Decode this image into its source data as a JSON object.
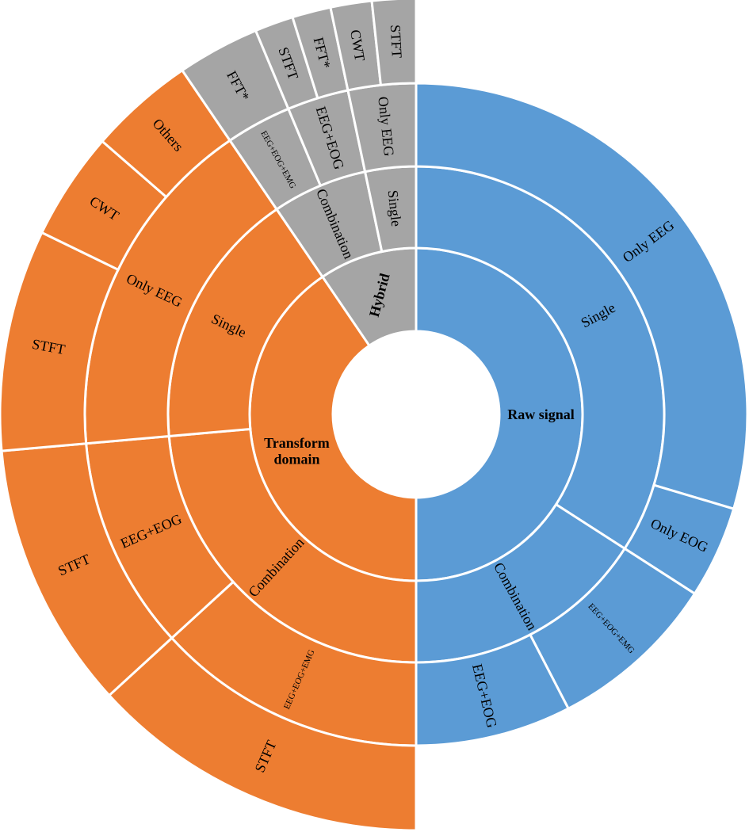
{
  "chart_data": {
    "type": "sunburst",
    "colors": {
      "Raw signal": "#5b9bd5",
      "Transform domain": "#ed7d31",
      "Hybrid": "#a5a5a5"
    },
    "segments": [
      {
        "id": "raw",
        "label": "Raw signal",
        "ring": 0,
        "start": 0.0,
        "end": 0.5,
        "group": "Raw signal",
        "bold": true
      },
      {
        "id": "transform",
        "label": "Transform domain",
        "ring": 0,
        "start": 0.5,
        "end": 0.905,
        "group": "Transform domain",
        "bold": true,
        "lines": [
          "Transform",
          "domain"
        ]
      },
      {
        "id": "hybrid",
        "label": "Hybrid",
        "ring": 0,
        "start": 0.905,
        "end": 1.0,
        "group": "Hybrid",
        "bold": true
      },
      {
        "id": "raw-single",
        "label": "Single",
        "ring": 1,
        "start": 0.0,
        "end": 0.341,
        "group": "Raw signal"
      },
      {
        "id": "raw-combination",
        "label": "Combination",
        "ring": 1,
        "start": 0.341,
        "end": 0.5,
        "group": "Raw signal"
      },
      {
        "id": "transform-combination",
        "label": "Combination",
        "ring": 1,
        "start": 0.5,
        "end": 0.736,
        "group": "Transform domain"
      },
      {
        "id": "transform-single",
        "label": "Single",
        "ring": 1,
        "start": 0.736,
        "end": 0.905,
        "group": "Transform domain"
      },
      {
        "id": "hybrid-combination",
        "label": "Combination",
        "ring": 1,
        "start": 0.905,
        "end": 0.967,
        "group": "Hybrid"
      },
      {
        "id": "hybrid-single",
        "label": "Single",
        "ring": 1,
        "start": 0.967,
        "end": 1.0,
        "group": "Hybrid"
      },
      {
        "id": "raw-only-eeg",
        "label": "Only EEG",
        "ring": 2,
        "start": 0.0,
        "end": 0.296,
        "group": "Raw signal"
      },
      {
        "id": "raw-only-eog",
        "label": "Only EOG",
        "ring": 2,
        "start": 0.296,
        "end": 0.341,
        "group": "Raw signal"
      },
      {
        "id": "raw-eeg-eog-emg",
        "label": "EEG+EOG+EMG",
        "ring": 2,
        "start": 0.341,
        "end": 0.424,
        "group": "Raw signal",
        "small": true
      },
      {
        "id": "raw-eeg-eog",
        "label": "EEG+EOG",
        "ring": 2,
        "start": 0.424,
        "end": 0.5,
        "group": "Raw signal"
      },
      {
        "id": "transform-eeg-eog-emg",
        "label": "EEG+EOG+EMG",
        "ring": 2,
        "start": 0.5,
        "end": 0.632,
        "group": "Transform domain",
        "small": true
      },
      {
        "id": "transform-eeg-eog",
        "label": "EEG+EOG",
        "ring": 2,
        "start": 0.632,
        "end": 0.736,
        "group": "Transform domain"
      },
      {
        "id": "transform-only-eeg",
        "label": "Only EEG",
        "ring": 2,
        "start": 0.736,
        "end": 0.905,
        "group": "Transform domain"
      },
      {
        "id": "hybrid-eeg-eog-emg",
        "label": "EEG+EOG+EMG",
        "ring": 2,
        "start": 0.905,
        "end": 0.937,
        "group": "Hybrid",
        "small": true
      },
      {
        "id": "hybrid-eeg-eog",
        "label": "EEG+EOG",
        "ring": 2,
        "start": 0.937,
        "end": 0.967,
        "group": "Hybrid"
      },
      {
        "id": "hybrid-only-eeg",
        "label": "Only EEG",
        "ring": 2,
        "start": 0.967,
        "end": 1.0,
        "group": "Hybrid"
      },
      {
        "id": "transform-stft-1",
        "label": "STFT",
        "ring": 3,
        "start": 0.5,
        "end": 0.632,
        "group": "Transform domain"
      },
      {
        "id": "transform-stft-2",
        "label": "STFT",
        "ring": 3,
        "start": 0.632,
        "end": 0.736,
        "group": "Transform domain"
      },
      {
        "id": "transform-stft-3",
        "label": "STFT",
        "ring": 3,
        "start": 0.736,
        "end": 0.822,
        "group": "Transform domain"
      },
      {
        "id": "transform-cwt",
        "label": "CWT",
        "ring": 3,
        "start": 0.822,
        "end": 0.864,
        "group": "Transform domain"
      },
      {
        "id": "transform-others",
        "label": "Others",
        "ring": 3,
        "start": 0.864,
        "end": 0.905,
        "group": "Transform domain"
      },
      {
        "id": "hybrid-fft-1",
        "label": "FFT*",
        "ring": 3,
        "start": 0.905,
        "end": 0.937,
        "group": "Hybrid"
      },
      {
        "id": "hybrid-stft-1",
        "label": "STFT",
        "ring": 3,
        "start": 0.937,
        "end": 0.952,
        "group": "Hybrid"
      },
      {
        "id": "hybrid-fft-2",
        "label": "FFT*",
        "ring": 3,
        "start": 0.952,
        "end": 0.967,
        "group": "Hybrid"
      },
      {
        "id": "hybrid-cwt",
        "label": "CWT",
        "ring": 3,
        "start": 0.967,
        "end": 0.983,
        "group": "Hybrid"
      },
      {
        "id": "hybrid-stft-2",
        "label": "STFT",
        "ring": 3,
        "start": 0.983,
        "end": 1.0,
        "group": "Hybrid"
      }
    ]
  }
}
